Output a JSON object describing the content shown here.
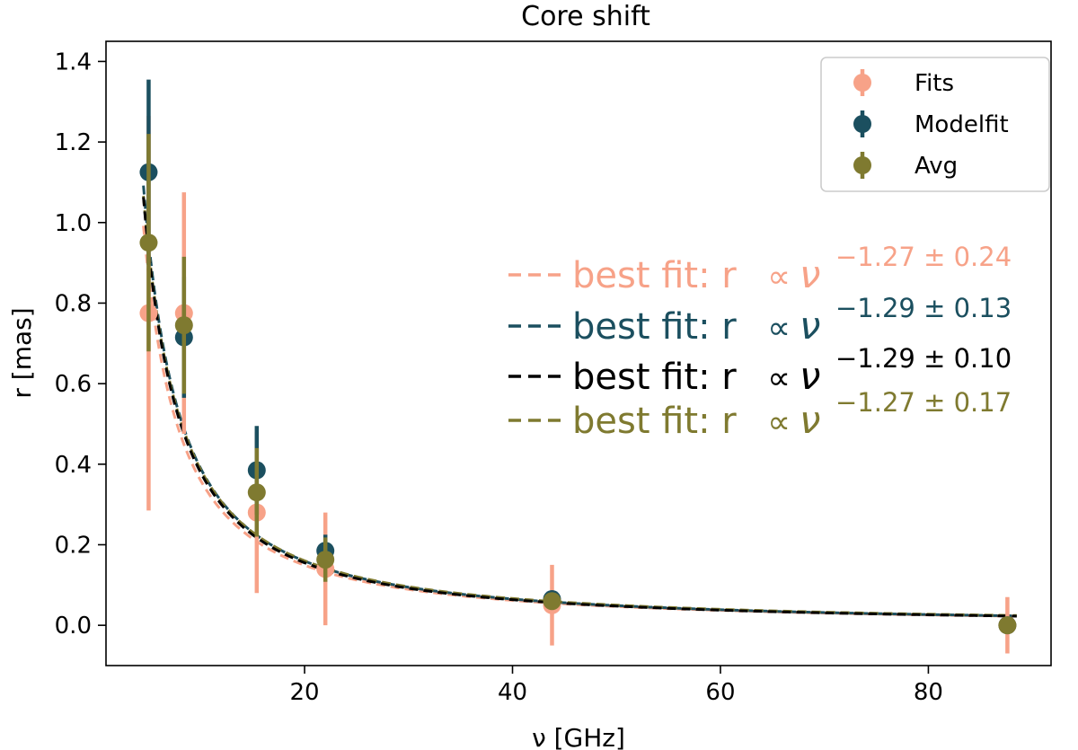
{
  "chart_data": {
    "type": "scatter",
    "title": "Core shift",
    "xlabel": "ν [GHz]",
    "ylabel": "r [mas]",
    "xlim": [
      0.9,
      91.8
    ],
    "ylim": [
      -0.1,
      1.45
    ],
    "xticks": [
      20,
      40,
      60,
      80
    ],
    "yticks": [
      0.0,
      0.2,
      0.4,
      0.6,
      0.8,
      1.0,
      1.2,
      1.4
    ],
    "xtick_labels": [
      "20",
      "40",
      "60",
      "80"
    ],
    "ytick_labels": [
      "0.0",
      "0.2",
      "0.4",
      "0.6",
      "0.8",
      "1.0",
      "1.2",
      "1.4"
    ],
    "legend_position": "top-right",
    "series": [
      {
        "name": "Fits",
        "color": "#f7a288",
        "x": [
          5.0,
          8.4,
          15.4,
          22.0,
          43.8,
          87.6
        ],
        "y": [
          0.775,
          0.775,
          0.28,
          0.14,
          0.05,
          0.0
        ],
        "yerr": [
          0.49,
          0.3,
          0.2,
          0.14,
          0.1,
          0.07
        ],
        "fit_label": {
          "text": "best fit: r",
          "exponent": "−1.27 ± 0.24"
        },
        "fit_exponent": 1.27,
        "fit_amp": 6.7
      },
      {
        "name": "Modelfit",
        "color": "#1b4f5f",
        "x": [
          5.0,
          8.4,
          15.4,
          22.0,
          43.8,
          87.6
        ],
        "y": [
          1.125,
          0.715,
          0.385,
          0.185,
          0.065,
          0.0
        ],
        "yerr": [
          0.23,
          0.15,
          0.11,
          0.04,
          0.02,
          0.015
        ],
        "fit_label": {
          "text": "best fit: r",
          "exponent": "−1.29 ± 0.13"
        },
        "fit_exponent": 1.29,
        "fit_amp": 7.6
      },
      {
        "name": "Avg",
        "color": "#7f7a30",
        "x": [
          5.0,
          8.4,
          15.4,
          22.0,
          43.8,
          87.6
        ],
        "y": [
          0.95,
          0.745,
          0.33,
          0.163,
          0.06,
          0.0
        ],
        "yerr": [
          0.27,
          0.17,
          0.11,
          0.055,
          0.02,
          0.01
        ],
        "fit_label": {
          "text": "best fit: r",
          "exponent": "−1.27 ± 0.17"
        },
        "fit_exponent": 1.27,
        "fit_amp": 7.2
      }
    ],
    "combined_fit": {
      "color": "#000000",
      "fit_label": {
        "text": "best fit: r",
        "exponent": "−1.29 ± 0.10"
      },
      "fit_exponent": 1.29,
      "fit_amp": 7.4
    }
  }
}
